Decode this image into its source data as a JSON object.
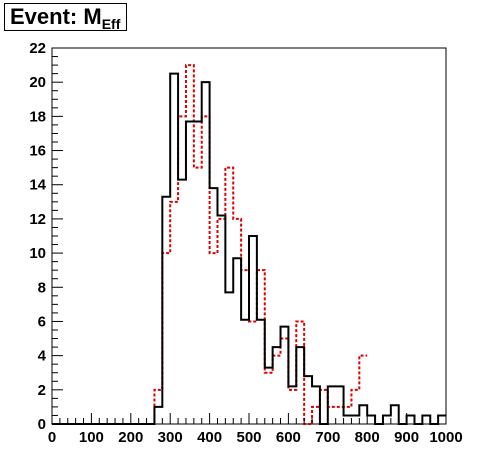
{
  "chart_data": {
    "type": "histogram",
    "title_main": "Event: M",
    "title_sub": "Eff",
    "xlabel": "",
    "ylabel": "",
    "xlim": [
      0,
      1000
    ],
    "ylim": [
      0,
      22
    ],
    "x_ticks": [
      0,
      100,
      200,
      300,
      400,
      500,
      600,
      700,
      800,
      900,
      1000
    ],
    "y_ticks": [
      0,
      2,
      4,
      6,
      8,
      10,
      12,
      14,
      16,
      18,
      20,
      22
    ],
    "bin_width": 20,
    "grid": false,
    "series": [
      {
        "style": "solid",
        "color": "#000000",
        "values": [
          0,
          0,
          0,
          0,
          0,
          0,
          0,
          0,
          0,
          0,
          0,
          0,
          0,
          1,
          13.3,
          20.5,
          14.3,
          17.7,
          17.7,
          20,
          13.8,
          12.2,
          7.7,
          9.7,
          6.1,
          11,
          6.1,
          3.3,
          4.5,
          5.7,
          2.2,
          4.5,
          2.8,
          2.2,
          0,
          2.2,
          2.2,
          0.5,
          0.5,
          1.1,
          0.5,
          0,
          0.5,
          1.1,
          0,
          0.5,
          0,
          0.5,
          0,
          0.5
        ]
      },
      {
        "style": "dashed",
        "color": "#dd0000",
        "values": [
          0,
          0,
          0,
          0,
          0,
          0,
          0,
          0,
          0,
          0,
          0,
          0,
          0,
          2,
          10,
          13,
          18,
          21,
          15,
          18,
          10,
          12,
          15,
          12,
          9,
          6,
          9,
          3,
          4,
          5,
          2,
          6,
          0,
          1,
          2,
          1,
          1,
          1,
          2,
          4
        ]
      }
    ]
  }
}
